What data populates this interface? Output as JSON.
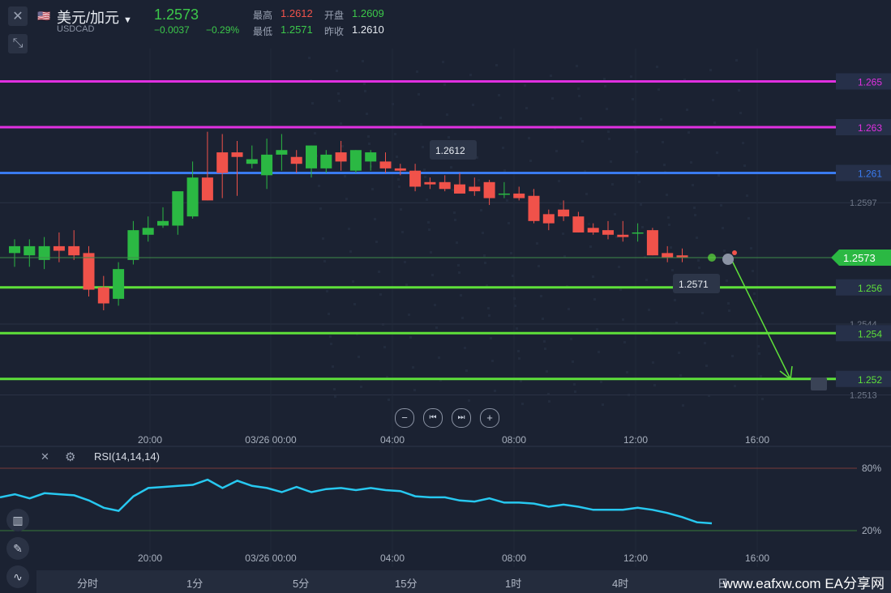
{
  "header": {
    "symbol_cn": "美元/加元",
    "symbol": "USDCAD",
    "last_price": "1.2573",
    "change": "−0.0037",
    "change_pct": "−0.29%",
    "high_label": "最高",
    "high": "1.2612",
    "open_label": "开盘",
    "open": "1.2609",
    "low_label": "最低",
    "low": "1.2571",
    "prev_close_label": "昨收",
    "prev_close": "1.2610"
  },
  "levels": [
    {
      "label": "1.265",
      "value": 1.265,
      "color": "#e030e0"
    },
    {
      "label": "1.263",
      "value": 1.263,
      "color": "#e030e0"
    },
    {
      "label": "1.261",
      "value": 1.261,
      "color": "#3a7bf0"
    },
    {
      "label": "1.256",
      "value": 1.256,
      "color": "#5ee03a"
    },
    {
      "label": "1.254",
      "value": 1.254,
      "color": "#5ee03a"
    },
    {
      "label": "1.252",
      "value": 1.252,
      "color": "#5ee03a"
    }
  ],
  "grid_labels": [
    "1.2597",
    "1.2544",
    "1.2513"
  ],
  "price_tag": "1.2573",
  "high_marker": "1.2612",
  "low_marker": "1.2571",
  "time_labels": [
    "20:00",
    "03/26 00:00",
    "04:00",
    "08:00",
    "12:00",
    "16:00"
  ],
  "rsi": {
    "label": "RSI(14,14,14)",
    "upper": "80%",
    "lower": "20%",
    "values": [
      52,
      55,
      51,
      56,
      55,
      54,
      49,
      42,
      39,
      53,
      61,
      62,
      63,
      64,
      69,
      61,
      68,
      63,
      61,
      57,
      62,
      57,
      60,
      61,
      59,
      61,
      59,
      58,
      53,
      52,
      52,
      49,
      48,
      51,
      47,
      47,
      46,
      43,
      45,
      43,
      40,
      40,
      40,
      42,
      40,
      37,
      33,
      28,
      27
    ]
  },
  "chart_data": {
    "type": "candlestick",
    "title": "美元/加元",
    "ylim": [
      1.2505,
      1.2675
    ],
    "candles": [
      {
        "o": 1.2575,
        "h": 1.2581,
        "l": 1.2569,
        "c": 1.2578
      },
      {
        "o": 1.2574,
        "h": 1.2581,
        "l": 1.2569,
        "c": 1.2578
      },
      {
        "o": 1.2572,
        "h": 1.2582,
        "l": 1.2568,
        "c": 1.2578
      },
      {
        "o": 1.2578,
        "h": 1.2584,
        "l": 1.2571,
        "c": 1.2576
      },
      {
        "o": 1.2578,
        "h": 1.2585,
        "l": 1.2572,
        "c": 1.2574
      },
      {
        "o": 1.2575,
        "h": 1.2578,
        "l": 1.2556,
        "c": 1.2559
      },
      {
        "o": 1.256,
        "h": 1.2565,
        "l": 1.255,
        "c": 1.2553
      },
      {
        "o": 1.2555,
        "h": 1.2571,
        "l": 1.2552,
        "c": 1.2568
      },
      {
        "o": 1.2572,
        "h": 1.2589,
        "l": 1.257,
        "c": 1.2585
      },
      {
        "o": 1.2583,
        "h": 1.2591,
        "l": 1.258,
        "c": 1.2586
      },
      {
        "o": 1.2587,
        "h": 1.2595,
        "l": 1.2586,
        "c": 1.2589
      },
      {
        "o": 1.2587,
        "h": 1.2601,
        "l": 1.2583,
        "c": 1.2602
      },
      {
        "o": 1.2591,
        "h": 1.2615,
        "l": 1.259,
        "c": 1.2608
      },
      {
        "o": 1.2608,
        "h": 1.2628,
        "l": 1.2598,
        "c": 1.2598
      },
      {
        "o": 1.2619,
        "h": 1.2627,
        "l": 1.2599,
        "c": 1.261
      },
      {
        "o": 1.2619,
        "h": 1.2624,
        "l": 1.26,
        "c": 1.2617
      },
      {
        "o": 1.2614,
        "h": 1.2622,
        "l": 1.2612,
        "c": 1.2616
      },
      {
        "o": 1.2609,
        "h": 1.2625,
        "l": 1.2603,
        "c": 1.2618
      },
      {
        "o": 1.2618,
        "h": 1.2627,
        "l": 1.2611,
        "c": 1.262
      },
      {
        "o": 1.2617,
        "h": 1.262,
        "l": 1.261,
        "c": 1.2614
      },
      {
        "o": 1.2612,
        "h": 1.2622,
        "l": 1.2608,
        "c": 1.2622
      },
      {
        "o": 1.2612,
        "h": 1.262,
        "l": 1.261,
        "c": 1.2618
      },
      {
        "o": 1.2619,
        "h": 1.2624,
        "l": 1.2611,
        "c": 1.2615
      },
      {
        "o": 1.2611,
        "h": 1.262,
        "l": 1.261,
        "c": 1.262
      },
      {
        "o": 1.2615,
        "h": 1.262,
        "l": 1.2611,
        "c": 1.2619
      },
      {
        "o": 1.2615,
        "h": 1.2619,
        "l": 1.261,
        "c": 1.2612
      },
      {
        "o": 1.2612,
        "h": 1.2614,
        "l": 1.2609,
        "c": 1.2611
      },
      {
        "o": 1.2611,
        "h": 1.2614,
        "l": 1.2602,
        "c": 1.2604
      },
      {
        "o": 1.2606,
        "h": 1.2608,
        "l": 1.2603,
        "c": 1.2605
      },
      {
        "o": 1.2606,
        "h": 1.2609,
        "l": 1.2602,
        "c": 1.2603
      },
      {
        "o": 1.2605,
        "h": 1.261,
        "l": 1.2602,
        "c": 1.2601
      },
      {
        "o": 1.2604,
        "h": 1.2608,
        "l": 1.26,
        "c": 1.2602
      },
      {
        "o": 1.2606,
        "h": 1.2607,
        "l": 1.2596,
        "c": 1.2599
      },
      {
        "o": 1.2601,
        "h": 1.2606,
        "l": 1.2599,
        "c": 1.2601
      },
      {
        "o": 1.2601,
        "h": 1.2604,
        "l": 1.2598,
        "c": 1.2599
      },
      {
        "o": 1.26,
        "h": 1.2603,
        "l": 1.2588,
        "c": 1.2589
      },
      {
        "o": 1.2592,
        "h": 1.2594,
        "l": 1.2585,
        "c": 1.2588
      },
      {
        "o": 1.2594,
        "h": 1.2598,
        "l": 1.2589,
        "c": 1.2591
      },
      {
        "o": 1.2591,
        "h": 1.2593,
        "l": 1.2584,
        "c": 1.2584
      },
      {
        "o": 1.2586,
        "h": 1.2588,
        "l": 1.2583,
        "c": 1.2584
      },
      {
        "o": 1.2585,
        "h": 1.2589,
        "l": 1.2581,
        "c": 1.2583
      },
      {
        "o": 1.2583,
        "h": 1.2589,
        "l": 1.258,
        "c": 1.2582
      },
      {
        "o": 1.2584,
        "h": 1.2588,
        "l": 1.258,
        "c": 1.2584
      },
      {
        "o": 1.2585,
        "h": 1.2586,
        "l": 1.2574,
        "c": 1.2574
      },
      {
        "o": 1.2575,
        "h": 1.2578,
        "l": 1.2571,
        "c": 1.2573
      },
      {
        "o": 1.2574,
        "h": 1.2577,
        "l": 1.2571,
        "c": 1.2573
      }
    ]
  },
  "tabs": [
    "分时",
    "1分",
    "5分",
    "15分",
    "1时",
    "4时",
    "日"
  ],
  "watermark": "www.eafxw.com  EA分享网",
  "colors": {
    "up": "#2bb843",
    "down": "#f0524a",
    "bg": "#1b2232",
    "rsi": "#27c8f0"
  }
}
